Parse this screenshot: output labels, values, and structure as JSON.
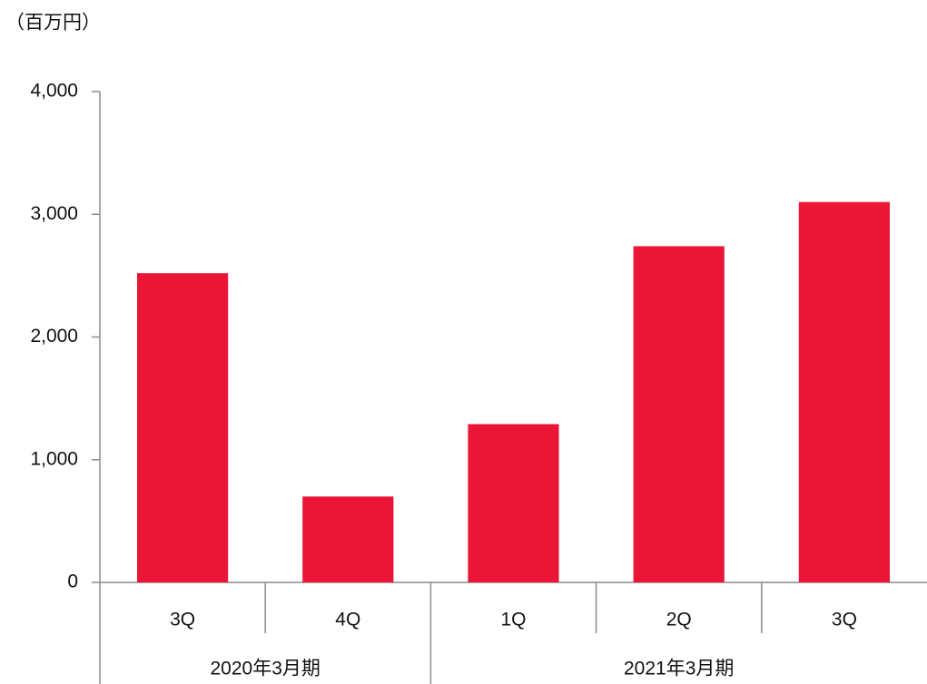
{
  "chart_data": {
    "type": "bar",
    "unit_label": "（百万円）",
    "groups": [
      {
        "label": "2020年3月期",
        "categories": [
          "3Q",
          "4Q"
        ],
        "values": [
          2520,
          700
        ]
      },
      {
        "label": "2021年3月期",
        "categories": [
          "1Q",
          "2Q",
          "3Q"
        ],
        "values": [
          1290,
          2740,
          3100
        ]
      }
    ],
    "color": "#eb1536",
    "ylim": [
      0,
      4000
    ],
    "yticks": [
      0,
      {
        "value": 1000,
        "label": "1,000"
      },
      {
        "value": 2000,
        "label": "2,000"
      },
      {
        "value": 3000,
        "label": "3,000"
      },
      {
        "value": 4000,
        "label": "4,000"
      }
    ],
    "grid": false
  }
}
